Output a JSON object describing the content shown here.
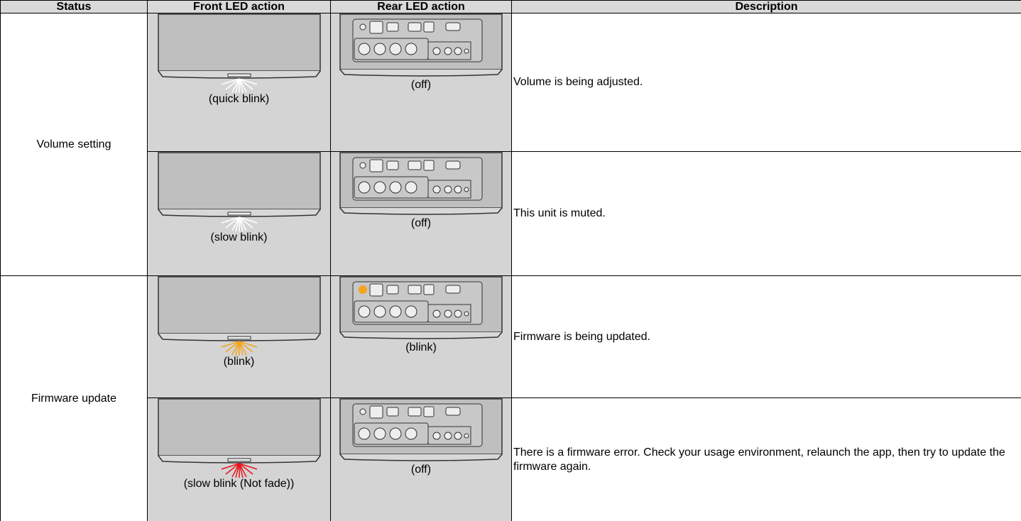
{
  "table": {
    "header": [
      "Status",
      "Front LED action",
      "Rear LED action",
      "Description"
    ],
    "groups": [
      {
        "status": "Volume setting",
        "rows": [
          {
            "front": "(quick blink)",
            "rear": "(off)",
            "description": "Volume is being adjusted."
          },
          {
            "front": "(slow blink)",
            "rear": "(off)",
            "description": "This unit is muted."
          }
        ]
      },
      {
        "status": "Firmware update",
        "rows": [
          {
            "front": "(blink)",
            "rear": "(blink)",
            "description": "Firmware is being updated."
          },
          {
            "front": "(slow blink (Not fade))",
            "rear": "(off)",
            "description": "There is a firmware error. Check your usage environment, relaunch the app, then try to update the firmware again."
          }
        ]
      }
    ]
  }
}
